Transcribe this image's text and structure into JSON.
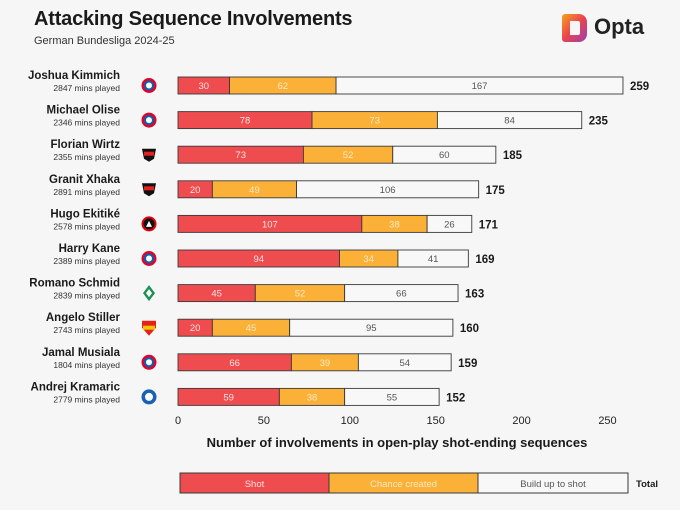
{
  "header": {
    "title": "Attacking Sequence Involvements",
    "subtitle": "German Bundesliga 2024-25",
    "brand": "Opta"
  },
  "colors": {
    "shot": "#ef4c4f",
    "chance_created": "#fbb138",
    "build_up": "#f8f8f8",
    "outline": "#3a3a3a",
    "shot_text": "#fde3e3",
    "chance_text": "#fbe9c6",
    "build_text": "#555555"
  },
  "chart_data": {
    "type": "bar",
    "orientation": "horizontal",
    "stacked": true,
    "title": "Attacking Sequence Involvements",
    "subtitle": "German Bundesliga 2024-25",
    "xlabel": "Number of involvements in open-play shot-ending sequences",
    "ylabel": "",
    "xlim": [
      0,
      265
    ],
    "xticks": [
      0,
      50,
      100,
      150,
      200,
      250
    ],
    "grid": false,
    "legend_position": "bottom",
    "legend": {
      "shot": "Shot",
      "chance_created": "Chance created",
      "build_up": "Build up to shot",
      "total": "Total"
    },
    "players": [
      {
        "name": "Joshua Kimmich",
        "mins": "2847 mins played",
        "club": "bayern",
        "shot": 30,
        "chance_created": 62,
        "build_up": 167,
        "total": 259
      },
      {
        "name": "Michael Olise",
        "mins": "2346 mins played",
        "club": "bayern",
        "shot": 78,
        "chance_created": 73,
        "build_up": 84,
        "total": 235
      },
      {
        "name": "Florian Wirtz",
        "mins": "2355 mins played",
        "club": "leverkusen",
        "shot": 73,
        "chance_created": 52,
        "build_up": 60,
        "total": 185
      },
      {
        "name": "Granit Xhaka",
        "mins": "2891 mins played",
        "club": "leverkusen",
        "shot": 20,
        "chance_created": 49,
        "build_up": 106,
        "total": 175
      },
      {
        "name": "Hugo Ekitiké",
        "mins": "2578 mins played",
        "club": "frankfurt",
        "shot": 107,
        "chance_created": 38,
        "build_up": 26,
        "total": 171
      },
      {
        "name": "Harry Kane",
        "mins": "2389 mins played",
        "club": "bayern",
        "shot": 94,
        "chance_created": 34,
        "build_up": 41,
        "total": 169
      },
      {
        "name": "Romano Schmid",
        "mins": "2839 mins played",
        "club": "bremen",
        "shot": 45,
        "chance_created": 52,
        "build_up": 66,
        "total": 163
      },
      {
        "name": "Angelo Stiller",
        "mins": "2743 mins played",
        "club": "stuttgart",
        "shot": 20,
        "chance_created": 45,
        "build_up": 95,
        "total": 160
      },
      {
        "name": "Jamal Musiala",
        "mins": "1804 mins played",
        "club": "bayern",
        "shot": 66,
        "chance_created": 39,
        "build_up": 54,
        "total": 159
      },
      {
        "name": "Andrej Kramaric",
        "mins": "2779 mins played",
        "club": "hoffenheim",
        "shot": 59,
        "chance_created": 38,
        "build_up": 55,
        "total": 152
      }
    ]
  }
}
